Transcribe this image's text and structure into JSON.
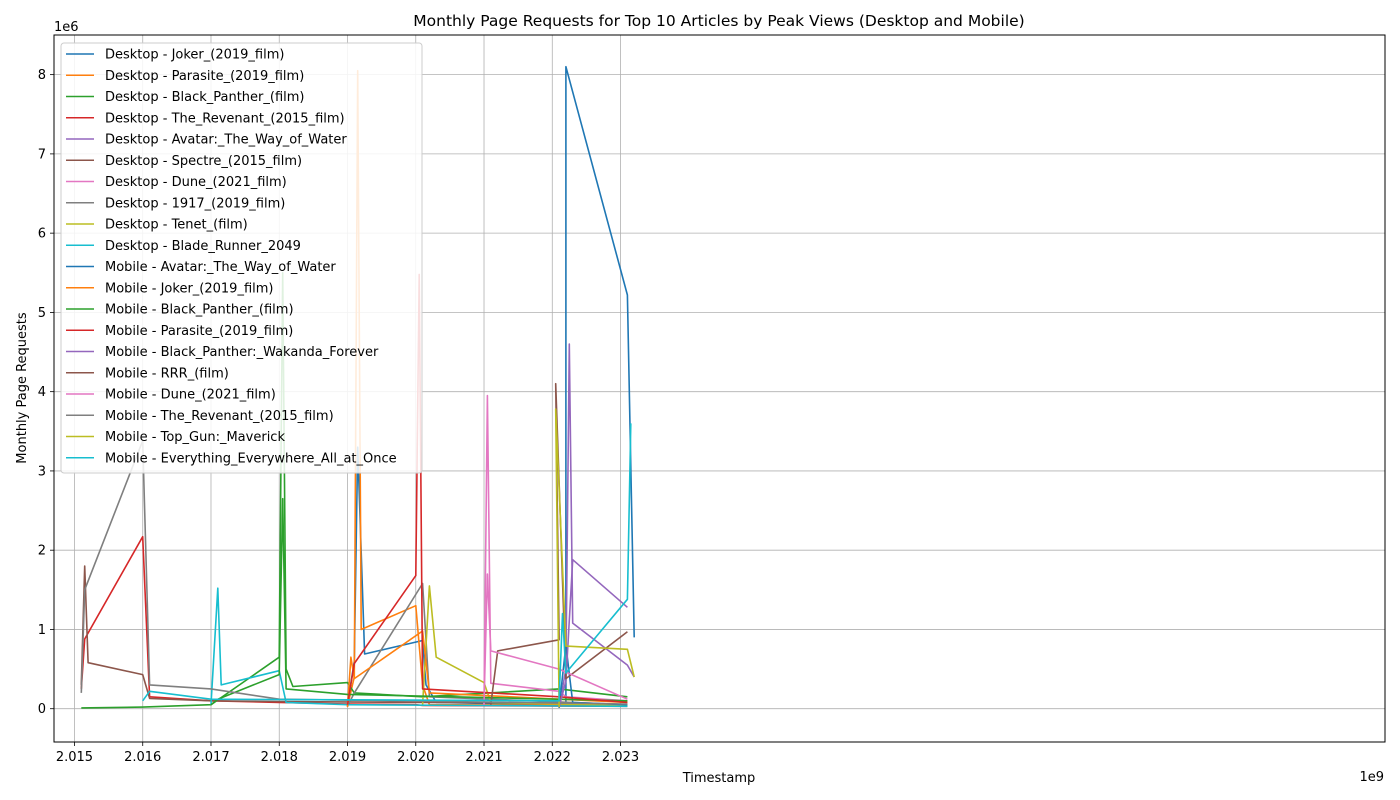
{
  "chart_data": {
    "type": "line",
    "title": "Monthly Page Requests for Top 10 Articles by Peak Views (Desktop and Mobile)",
    "xlabel": "Timestamp",
    "ylabel": "Monthly Page Requests",
    "x_offset_label": "1e9",
    "y_offset_label": "1e6",
    "xlim": [
      2.0147,
      2.0342
    ],
    "ylim": [
      -0.42,
      8.5
    ],
    "x_ticks": [
      2.015,
      2.016,
      2.017,
      2.018,
      2.019,
      2.02,
      2.021,
      2.022,
      2.023
    ],
    "x_tick_labels": [
      "2.015",
      "2.016",
      "2.017",
      "2.018",
      "2.019",
      "2.020",
      "2.021",
      "2.022",
      "2.023"
    ],
    "y_ticks": [
      0,
      1,
      2,
      3,
      4,
      5,
      6,
      7,
      8
    ],
    "y_tick_labels": [
      "0",
      "1",
      "2",
      "3",
      "4",
      "5",
      "6",
      "7",
      "8"
    ],
    "grid": true,
    "legend_position": "top-left",
    "series": [
      {
        "name": "Desktop - Joker_(2019_film)",
        "color": "#1f77b4",
        "x": [
          2.019,
          2.0191,
          2.01915,
          2.01925,
          2.0201,
          2.02015,
          2.0203,
          2.0221,
          2.0222,
          2.0222,
          2.0222,
          2.0231,
          2.0232
        ],
        "y": [
          0.05,
          0.6,
          3.3,
          0.69,
          0.86,
          0.3,
          0.08,
          0.05,
          0.06,
          3.0,
          8.1,
          5.22,
          0.9
        ]
      },
      {
        "name": "Desktop - Parasite_(2019_film)",
        "color": "#ff7f0e",
        "x": [
          2.019,
          2.0191,
          2.01915,
          2.0192,
          2.02,
          2.0201,
          2.0202,
          2.0231
        ],
        "y": [
          0.03,
          0.4,
          8.05,
          1.0,
          1.3,
          0.3,
          0.05,
          0.04
        ]
      },
      {
        "name": "Desktop - Black_Panther_(film)",
        "color": "#2ca02c",
        "x": [
          2.0151,
          2.016,
          2.017,
          2.018,
          2.01805,
          2.0181,
          2.0182,
          2.019,
          2.0191,
          2.0201,
          2.0221,
          2.0231
        ],
        "y": [
          0.01,
          0.02,
          0.05,
          0.65,
          5.5,
          0.5,
          0.28,
          0.33,
          0.2,
          0.15,
          0.25,
          0.15
        ]
      },
      {
        "name": "Desktop - The_Revenant_(2015_film)",
        "color": "#d62728",
        "x": [
          2.0151,
          2.01515,
          2.016,
          2.0161,
          2.017,
          2.018,
          2.019,
          2.02,
          2.0201,
          2.0231
        ],
        "y": [
          0.25,
          0.88,
          2.17,
          0.15,
          0.1,
          0.08,
          0.06,
          0.05,
          0.04,
          0.03
        ]
      },
      {
        "name": "Desktop - Avatar:_The_Way_of_Water",
        "color": "#9467bd",
        "x": [
          2.0221,
          2.0222,
          2.02225,
          2.0223,
          2.0231,
          2.0232
        ],
        "y": [
          0.02,
          0.5,
          4.6,
          1.08,
          0.55,
          0.4
        ]
      },
      {
        "name": "Desktop - Spectre_(2015_film)",
        "color": "#8c564b",
        "x": [
          2.0151,
          2.01515,
          2.0152,
          2.016,
          2.0161,
          2.017,
          2.018,
          2.0201,
          2.0221,
          2.0231
        ],
        "y": [
          0.3,
          1.8,
          0.58,
          0.43,
          0.13,
          0.1,
          0.09,
          0.08,
          0.07,
          0.05
        ]
      },
      {
        "name": "Desktop - Dune_(2021_film)",
        "color": "#e377c2",
        "x": [
          2.021,
          2.02105,
          2.0211,
          2.0221,
          2.0222,
          2.0231
        ],
        "y": [
          0.05,
          3.95,
          0.32,
          0.22,
          0.15,
          0.1
        ]
      },
      {
        "name": "Desktop - 1917_(2019_film)",
        "color": "#7f7f7f",
        "x": [
          2.019,
          2.0191,
          2.0201,
          2.0202,
          2.0231
        ],
        "y": [
          0.03,
          0.2,
          1.58,
          0.15,
          0.05
        ]
      },
      {
        "name": "Desktop - Tenet_(film)",
        "color": "#bcbd22",
        "x": [
          2.0201,
          2.0202,
          2.0203,
          2.021,
          2.0211,
          2.0231
        ],
        "y": [
          0.05,
          1.55,
          0.65,
          0.33,
          0.08,
          0.04
        ]
      },
      {
        "name": "Desktop - Blade_Runner_2049",
        "color": "#17becf",
        "x": [
          2.017,
          2.0171,
          2.01715,
          2.018,
          2.0181,
          2.019,
          2.0231
        ],
        "y": [
          0.05,
          1.52,
          0.3,
          0.48,
          0.08,
          0.05,
          0.03
        ]
      },
      {
        "name": "Mobile - Avatar:_The_Way_of_Water",
        "color": "#1f77b4",
        "x": [
          2.0221,
          2.0222,
          2.0223,
          2.0231
        ],
        "y": [
          0.01,
          0.8,
          0.08,
          0.05
        ]
      },
      {
        "name": "Mobile - Joker_(2019_film)",
        "color": "#ff7f0e",
        "x": [
          2.019,
          2.01905,
          2.0191,
          2.0201,
          2.0202,
          2.0231
        ],
        "y": [
          0.02,
          0.65,
          0.38,
          0.98,
          0.2,
          0.08
        ]
      },
      {
        "name": "Mobile - Black_Panther_(film)",
        "color": "#2ca02c",
        "x": [
          2.017,
          2.0171,
          2.018,
          2.01805,
          2.0181,
          2.019,
          2.0231
        ],
        "y": [
          0.05,
          0.12,
          0.43,
          2.65,
          0.25,
          0.18,
          0.1
        ]
      },
      {
        "name": "Mobile - Parasite_(2019_film)",
        "color": "#d62728",
        "x": [
          2.019,
          2.0191,
          2.02,
          2.02005,
          2.0201,
          2.0221,
          2.0231
        ],
        "y": [
          0.05,
          0.57,
          1.68,
          5.48,
          0.25,
          0.15,
          0.08
        ]
      },
      {
        "name": "Mobile - Black_Panther:_Wakanda_Forever",
        "color": "#9467bd",
        "x": [
          2.0221,
          2.0222,
          2.0223,
          2.0231
        ],
        "y": [
          0.02,
          0.35,
          1.88,
          1.28
        ]
      },
      {
        "name": "Mobile - RRR_(film)",
        "color": "#8c564b",
        "x": [
          2.0211,
          2.0212,
          2.0221,
          2.02205,
          2.0222,
          2.0231
        ],
        "y": [
          0.05,
          0.73,
          0.87,
          4.1,
          0.38,
          0.97
        ]
      },
      {
        "name": "Mobile - Dune_(2021_film)",
        "color": "#e377c2",
        "x": [
          2.021,
          2.02105,
          2.0211,
          2.0221,
          2.0231
        ],
        "y": [
          0.05,
          1.7,
          0.73,
          0.5,
          0.12
        ]
      },
      {
        "name": "Mobile - The_Revenant_(2015_film)",
        "color": "#7f7f7f",
        "x": [
          2.0151,
          2.01515,
          2.016,
          2.0161,
          2.017,
          2.018,
          2.0231
        ],
        "y": [
          0.2,
          1.5,
          3.38,
          0.3,
          0.25,
          0.12,
          0.06
        ]
      },
      {
        "name": "Mobile - Top_Gun:_Maverick",
        "color": "#bcbd22",
        "x": [
          2.0221,
          2.02205,
          2.0222,
          2.0231,
          2.0232
        ],
        "y": [
          0.02,
          3.78,
          0.79,
          0.75,
          0.4
        ]
      },
      {
        "name": "Mobile - Everything_Everywhere_All_at_Once",
        "color": "#17becf",
        "x": [
          2.016,
          2.0161,
          2.017,
          2.0221,
          2.02215,
          2.0222,
          2.0231,
          2.02315
        ],
        "y": [
          0.1,
          0.22,
          0.12,
          0.1,
          1.2,
          0.45,
          1.38,
          3.6
        ]
      }
    ]
  }
}
